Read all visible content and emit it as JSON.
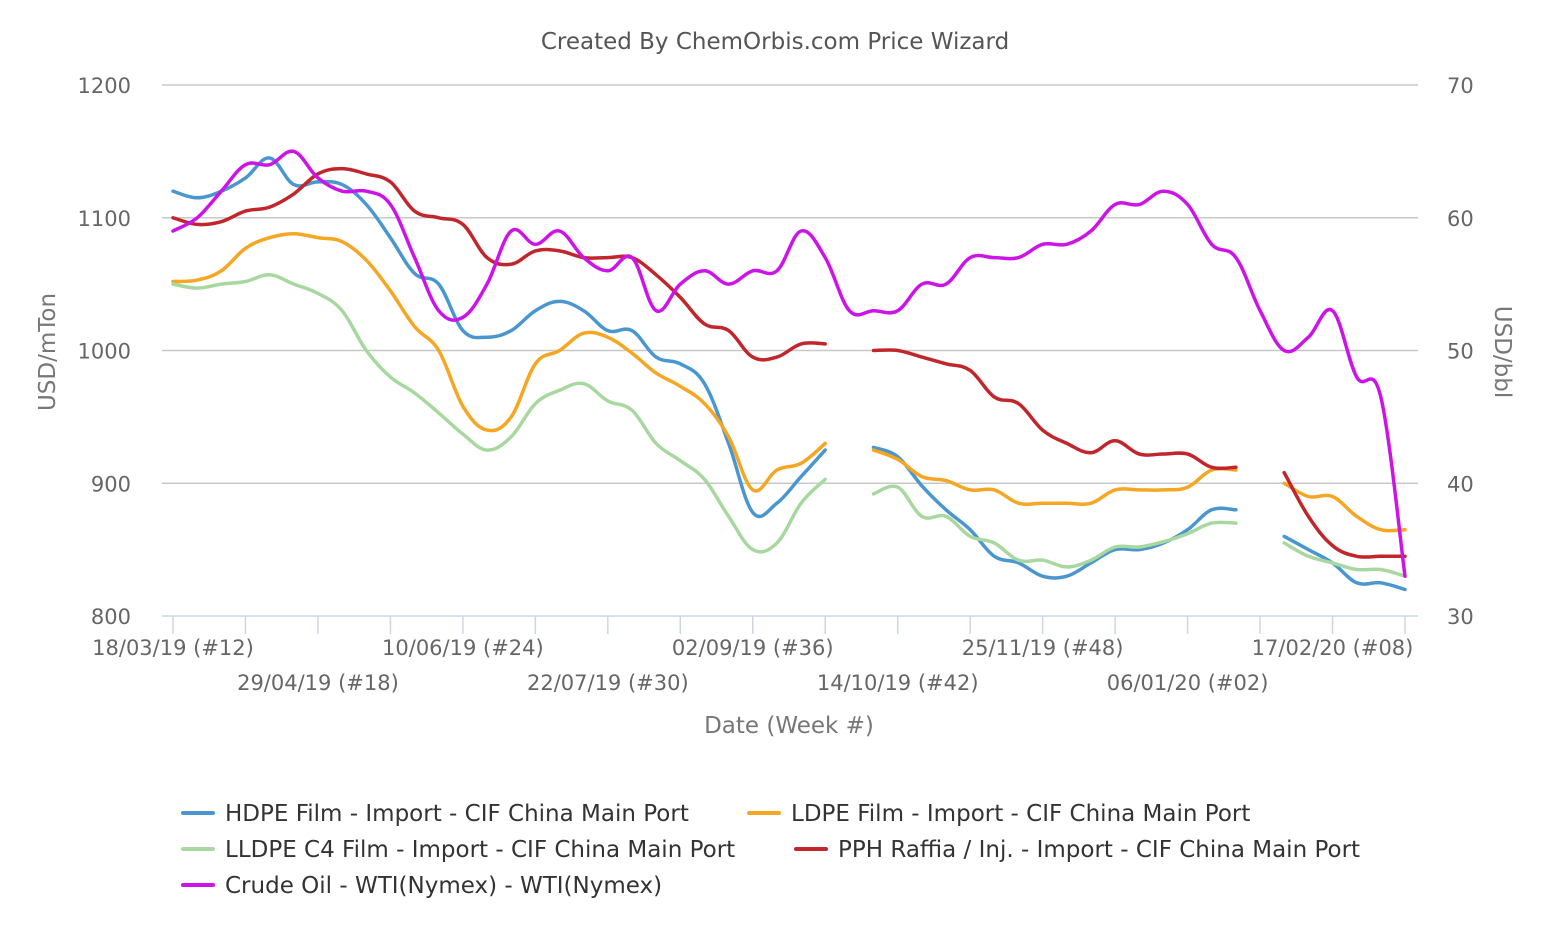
{
  "chart_data": {
    "type": "line",
    "title": "Created By ChemOrbis.com Price Wizard",
    "xlabel": "Date (Week #)",
    "ylabel_left": "USD/mTon",
    "ylabel_right": "USD/bbl",
    "ylim_left": [
      800,
      1200
    ],
    "ylim_right": [
      30,
      70
    ],
    "yticks_left": [
      "800",
      "900",
      "1000",
      "1100",
      "1200"
    ],
    "yticks_right": [
      "30",
      "40",
      "50",
      "60",
      "70"
    ],
    "grid": true,
    "legend_position": "bottom",
    "x_tick_labels": [
      {
        "week": 0,
        "label": "18/03/19 (#12)"
      },
      {
        "week": 6,
        "label": "29/04/19 (#18)"
      },
      {
        "week": 12,
        "label": "10/06/19 (#24)"
      },
      {
        "week": 18,
        "label": "22/07/19 (#30)"
      },
      {
        "week": 24,
        "label": "02/09/19 (#36)"
      },
      {
        "week": 30,
        "label": "14/10/19 (#42)"
      },
      {
        "week": 36,
        "label": "25/11/19 (#48)"
      },
      {
        "week": 42,
        "label": "06/01/20 (#02)"
      },
      {
        "week": 48,
        "label": "17/02/20 (#08)"
      }
    ],
    "x_note": "x values are weeks after 18/03/19",
    "series": [
      {
        "name": "HDPE Film - Import - CIF China Main Port",
        "color": "#4a96cf",
        "axis": "left",
        "points": [
          [
            0,
            1120
          ],
          [
            1,
            1115
          ],
          [
            2,
            1120
          ],
          [
            3,
            1130
          ],
          [
            4,
            1145
          ],
          [
            5,
            1125
          ],
          [
            6,
            1127
          ],
          [
            7,
            1125
          ],
          [
            8,
            1110
          ],
          [
            9,
            1085
          ],
          [
            10,
            1058
          ],
          [
            11,
            1050
          ],
          [
            12,
            1015
          ],
          [
            13,
            1010
          ],
          [
            14,
            1015
          ],
          [
            15,
            1030
          ],
          [
            16,
            1037
          ],
          [
            17,
            1030
          ],
          [
            18,
            1015
          ],
          [
            19,
            1015
          ],
          [
            20,
            995
          ],
          [
            21,
            990
          ],
          [
            22,
            975
          ],
          [
            23,
            930
          ],
          [
            24,
            878
          ],
          [
            25,
            885
          ],
          [
            26,
            905
          ],
          [
            27,
            925
          ],
          null,
          [
            29,
            927
          ],
          [
            30,
            920
          ],
          [
            31,
            898
          ],
          [
            32,
            880
          ],
          [
            33,
            865
          ],
          [
            34,
            845
          ],
          [
            35,
            840
          ],
          [
            36,
            830
          ],
          [
            37,
            830
          ],
          [
            38,
            840
          ],
          [
            39,
            850
          ],
          [
            40,
            850
          ],
          [
            41,
            855
          ],
          [
            42,
            865
          ],
          [
            43,
            880
          ],
          [
            44,
            880
          ],
          null,
          [
            46,
            860
          ],
          [
            47,
            850
          ],
          [
            48,
            840
          ],
          [
            49,
            825
          ],
          [
            50,
            825
          ],
          [
            51,
            820
          ]
        ]
      },
      {
        "name": "LDPE Film - Import - CIF China Main Port",
        "color": "#f5a623",
        "axis": "left",
        "points": [
          [
            0,
            1052
          ],
          [
            1,
            1053
          ],
          [
            2,
            1060
          ],
          [
            3,
            1077
          ],
          [
            4,
            1085
          ],
          [
            5,
            1088
          ],
          [
            6,
            1085
          ],
          [
            7,
            1082
          ],
          [
            8,
            1068
          ],
          [
            9,
            1045
          ],
          [
            10,
            1018
          ],
          [
            11,
            1000
          ],
          [
            12,
            958
          ],
          [
            13,
            940
          ],
          [
            14,
            950
          ],
          [
            15,
            990
          ],
          [
            16,
            1000
          ],
          [
            17,
            1013
          ],
          [
            18,
            1010
          ],
          [
            19,
            998
          ],
          [
            20,
            983
          ],
          [
            21,
            973
          ],
          [
            22,
            960
          ],
          [
            23,
            935
          ],
          [
            24,
            895
          ],
          [
            25,
            910
          ],
          [
            26,
            915
          ],
          [
            27,
            930
          ],
          null,
          [
            29,
            925
          ],
          [
            30,
            918
          ],
          [
            31,
            905
          ],
          [
            32,
            902
          ],
          [
            33,
            895
          ],
          [
            34,
            895
          ],
          [
            35,
            885
          ],
          [
            36,
            885
          ],
          [
            37,
            885
          ],
          [
            38,
            885
          ],
          [
            39,
            895
          ],
          [
            40,
            895
          ],
          [
            41,
            895
          ],
          [
            42,
            897
          ],
          [
            43,
            910
          ],
          [
            44,
            910
          ],
          null,
          [
            46,
            900
          ],
          [
            47,
            890
          ],
          [
            48,
            890
          ],
          [
            49,
            875
          ],
          [
            50,
            865
          ],
          [
            51,
            865
          ]
        ]
      },
      {
        "name": "LLDPE C4 Film - Import - CIF China Main Port",
        "color": "#a8d8a0",
        "axis": "left",
        "points": [
          [
            0,
            1050
          ],
          [
            1,
            1047
          ],
          [
            2,
            1050
          ],
          [
            3,
            1052
          ],
          [
            4,
            1057
          ],
          [
            5,
            1050
          ],
          [
            6,
            1043
          ],
          [
            7,
            1030
          ],
          [
            8,
            1000
          ],
          [
            9,
            980
          ],
          [
            10,
            968
          ],
          [
            11,
            953
          ],
          [
            12,
            937
          ],
          [
            13,
            925
          ],
          [
            14,
            935
          ],
          [
            15,
            960
          ],
          [
            16,
            970
          ],
          [
            17,
            975
          ],
          [
            18,
            962
          ],
          [
            19,
            955
          ],
          [
            20,
            930
          ],
          [
            21,
            917
          ],
          [
            22,
            903
          ],
          [
            23,
            875
          ],
          [
            24,
            850
          ],
          [
            25,
            855
          ],
          [
            26,
            885
          ],
          [
            27,
            903
          ],
          null,
          [
            29,
            892
          ],
          [
            30,
            897
          ],
          [
            31,
            875
          ],
          [
            32,
            875
          ],
          [
            33,
            860
          ],
          [
            34,
            855
          ],
          [
            35,
            842
          ],
          [
            36,
            842
          ],
          [
            37,
            837
          ],
          [
            38,
            842
          ],
          [
            39,
            852
          ],
          [
            40,
            852
          ],
          [
            41,
            856
          ],
          [
            42,
            862
          ],
          [
            43,
            870
          ],
          [
            44,
            870
          ],
          null,
          [
            46,
            855
          ],
          [
            47,
            845
          ],
          [
            48,
            840
          ],
          [
            49,
            835
          ],
          [
            50,
            835
          ],
          [
            51,
            830
          ]
        ]
      },
      {
        "name": "PPH Raffia / Inj. - Import - CIF China Main Port",
        "color": "#c0262c",
        "axis": "left",
        "points": [
          [
            0,
            1100
          ],
          [
            1,
            1095
          ],
          [
            2,
            1097
          ],
          [
            3,
            1105
          ],
          [
            4,
            1108
          ],
          [
            5,
            1118
          ],
          [
            6,
            1133
          ],
          [
            7,
            1137
          ],
          [
            8,
            1133
          ],
          [
            9,
            1127
          ],
          [
            10,
            1105
          ],
          [
            11,
            1100
          ],
          [
            12,
            1095
          ],
          [
            13,
            1070
          ],
          [
            14,
            1065
          ],
          [
            15,
            1075
          ],
          [
            16,
            1075
          ],
          [
            17,
            1070
          ],
          [
            18,
            1070
          ],
          [
            19,
            1070
          ],
          [
            20,
            1057
          ],
          [
            21,
            1040
          ],
          [
            22,
            1020
          ],
          [
            23,
            1015
          ],
          [
            24,
            995
          ],
          [
            25,
            995
          ],
          [
            26,
            1005
          ],
          [
            27,
            1005
          ],
          null,
          [
            29,
            1000
          ],
          [
            30,
            1000
          ],
          [
            31,
            995
          ],
          [
            32,
            990
          ],
          [
            33,
            985
          ],
          [
            34,
            965
          ],
          [
            35,
            960
          ],
          [
            36,
            940
          ],
          [
            37,
            930
          ],
          [
            38,
            923
          ],
          [
            39,
            932
          ],
          [
            40,
            922
          ],
          [
            41,
            922
          ],
          [
            42,
            922
          ],
          [
            43,
            912
          ],
          [
            44,
            912
          ],
          null,
          [
            46,
            908
          ],
          [
            47,
            875
          ],
          [
            48,
            853
          ],
          [
            49,
            845
          ],
          [
            50,
            845
          ],
          [
            51,
            845
          ]
        ]
      },
      {
        "name": "Crude Oil - WTI(Nymex) - WTI(Nymex)",
        "color": "#cc14e8",
        "axis": "right",
        "points": [
          [
            0,
            59
          ],
          [
            1,
            60
          ],
          [
            2,
            62
          ],
          [
            3,
            64
          ],
          [
            4,
            64
          ],
          [
            5,
            65
          ],
          [
            6,
            63
          ],
          [
            7,
            62
          ],
          [
            8,
            62
          ],
          [
            9,
            61
          ],
          [
            10,
            57
          ],
          [
            11,
            53
          ],
          [
            12,
            52.5
          ],
          [
            13,
            55
          ],
          [
            14,
            59
          ],
          [
            15,
            58
          ],
          [
            16,
            59
          ],
          [
            17,
            57
          ],
          [
            18,
            56
          ],
          [
            19,
            57
          ],
          [
            20,
            53
          ],
          [
            21,
            55
          ],
          [
            22,
            56
          ],
          [
            23,
            55
          ],
          [
            24,
            56
          ],
          [
            25,
            56
          ],
          [
            26,
            59
          ],
          [
            27,
            57
          ],
          [
            28,
            53
          ],
          [
            29,
            53
          ],
          [
            30,
            53
          ],
          [
            31,
            55
          ],
          [
            32,
            55
          ],
          [
            33,
            57
          ],
          [
            34,
            57
          ],
          [
            35,
            57
          ],
          [
            36,
            58
          ],
          [
            37,
            58
          ],
          [
            38,
            59
          ],
          [
            39,
            61
          ],
          [
            40,
            61
          ],
          [
            41,
            62
          ],
          [
            42,
            61
          ],
          [
            43,
            58
          ],
          [
            44,
            57
          ],
          [
            45,
            53
          ],
          [
            46,
            50
          ],
          [
            47,
            51
          ],
          [
            48,
            53
          ],
          [
            49,
            48
          ],
          [
            50,
            46.5
          ],
          [
            51,
            33
          ]
        ]
      }
    ]
  }
}
